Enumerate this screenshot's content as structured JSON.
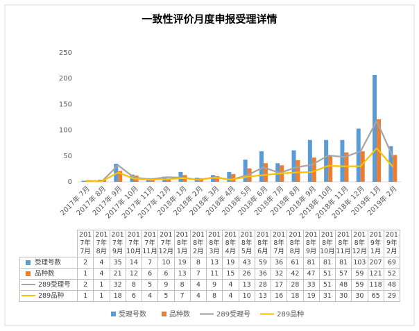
{
  "chart_data": {
    "type": "bar",
    "title": "一致性评价月度申报受理详情",
    "categories": [
      "2017年 7月",
      "2017年 8月",
      "2017年 9月",
      "2017年 10月",
      "2017年 11月",
      "2017年 12月",
      "2018年 1月",
      "2018年 2月",
      "2018年 3月",
      "2018年 4月",
      "2018年 5月",
      "2018年 6月",
      "2018年 7月",
      "2018年 8月",
      "2018年 9月",
      "2018年 10月",
      "2018年 11月",
      "2018年 12月",
      "2019年 1月",
      "2019年 2月"
    ],
    "series": [
      {
        "name": "受理号数",
        "type": "bar",
        "color": "#5b9bd5",
        "values": [
          2,
          4,
          35,
          14,
          7,
          10,
          19,
          8,
          13,
          19,
          43,
          59,
          36,
          61,
          81,
          81,
          81,
          103,
          207,
          69
        ]
      },
      {
        "name": "品种数",
        "type": "bar",
        "color": "#ed7d31",
        "values": [
          1,
          4,
          21,
          12,
          6,
          6,
          13,
          7,
          11,
          15,
          26,
          36,
          32,
          42,
          47,
          51,
          57,
          59,
          121,
          52
        ]
      },
      {
        "name": "289受理号",
        "type": "line",
        "color": "#a5a5a5",
        "values": [
          2,
          1,
          32,
          8,
          5,
          9,
          8,
          4,
          9,
          4,
          13,
          28,
          17,
          28,
          33,
          51,
          48,
          59,
          118,
          48
        ]
      },
      {
        "name": "289品种",
        "type": "line",
        "color": "#ffc000",
        "values": [
          1,
          1,
          18,
          6,
          4,
          5,
          7,
          4,
          8,
          4,
          10,
          13,
          16,
          18,
          19,
          31,
          30,
          30,
          65,
          29
        ]
      }
    ],
    "ylim": [
      0,
      250
    ],
    "yticks": [
      0,
      50,
      100,
      150,
      200,
      250
    ],
    "grid": false
  }
}
